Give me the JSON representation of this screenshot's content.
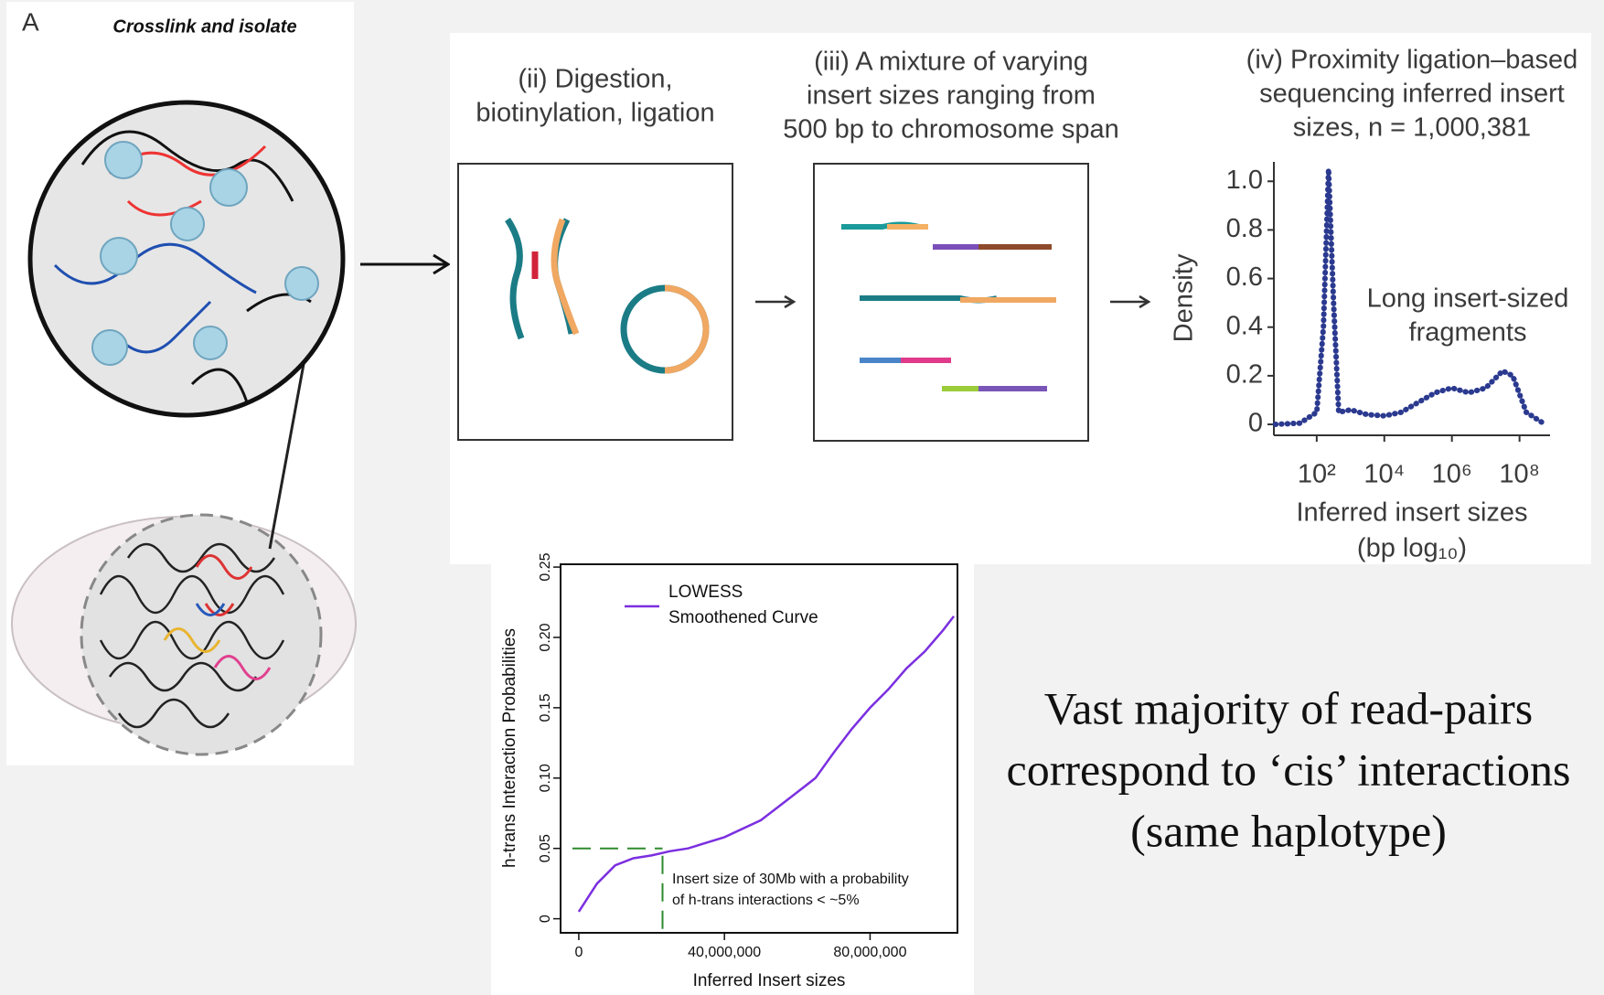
{
  "panel_a": {
    "label": "A",
    "title": "Crosslink and isolate"
  },
  "steps": [
    {
      "title": [
        "(ii) Digestion,",
        "biotinylation, ligation"
      ]
    },
    {
      "title": [
        "(iii) A mixture of varying",
        "insert sizes ranging from",
        "500 bp to chromosome span"
      ]
    }
  ],
  "density_chart": {
    "type": "line",
    "title": [
      "(iv) Proximity ligation–based",
      "sequencing inferred insert",
      "sizes, n = 1,000,381"
    ],
    "y_label": "Density",
    "x_label": [
      "Inferred insert sizes",
      "(bp log₁₀)"
    ],
    "annotation": [
      "Long insert-sized",
      "fragments"
    ],
    "log_scale_x": true,
    "color": "#2b3a8f",
    "x": [
      6,
      32,
      100,
      158,
      224,
      316,
      447,
      1000,
      3162,
      10000,
      31623,
      100000,
      316228,
      1000000,
      3162278,
      10000000,
      31622777,
      63095734,
      158489319,
      501187234
    ],
    "values": [
      0,
      0.005,
      0.05,
      0.4,
      1.05,
      0.5,
      0.05,
      0.06,
      0.04,
      0.035,
      0.05,
      0.09,
      0.13,
      0.15,
      0.13,
      0.15,
      0.22,
      0.2,
      0.05,
      0.005
    ],
    "xlim": [
      5.4,
      800000000
    ],
    "ylim": [
      -0.045,
      1.08
    ],
    "xticks": [
      {
        "value": 100,
        "label": "10²"
      },
      {
        "value": 10000,
        "label": "10⁴"
      },
      {
        "value": 1000000,
        "label": "10⁶"
      },
      {
        "value": 100000000,
        "label": "10⁸"
      }
    ],
    "yticks": [
      0,
      0.2,
      0.4,
      0.6,
      0.8,
      {
        "value": 1,
        "label": "1.0"
      }
    ]
  },
  "lowess_chart": {
    "type": "line",
    "y_label": "h-trans Interaction Probabilities",
    "x_label": "Inferred Insert sizes",
    "legend": [
      "LOWESS",
      "Smoothened Curve"
    ],
    "color": "#7b2fe0",
    "annotation": [
      "Insert size of 30Mb with a probability",
      "of h-trans interactions < ~5%"
    ],
    "reference_lines": {
      "y": 0.05,
      "x": 23000000,
      "color": "#2e8b2e"
    },
    "x": [
      0,
      5000000,
      10000000,
      15000000,
      20000000,
      25000000,
      30000000,
      40000000,
      50000000,
      55000000,
      60000000,
      65000000,
      70000000,
      75000000,
      80000000,
      85000000,
      90000000,
      95000000,
      100000000,
      103000000
    ],
    "values": [
      0.005,
      0.025,
      0.038,
      0.043,
      0.045,
      0.048,
      0.05,
      0.058,
      0.07,
      0.08,
      0.09,
      0.1,
      0.118,
      0.135,
      0.15,
      0.163,
      0.178,
      0.19,
      0.205,
      0.215
    ],
    "xlim": [
      -5000000,
      104000000
    ],
    "ylim": [
      -0.01,
      0.252
    ],
    "xticks": [
      0,
      {
        "value": 40000000,
        "label": "40,000,000"
      },
      {
        "value": 80000000,
        "label": "80,000,000"
      }
    ],
    "yticks": [
      0,
      0.05,
      {
        "value": 0.1,
        "label": "0.10"
      },
      0.15,
      {
        "value": 0.2,
        "label": "0.20"
      },
      0.25
    ]
  },
  "caption": [
    "Vast majority of read-pairs",
    "correspond to ‘cis’ interactions",
    "(same haplotype)"
  ]
}
